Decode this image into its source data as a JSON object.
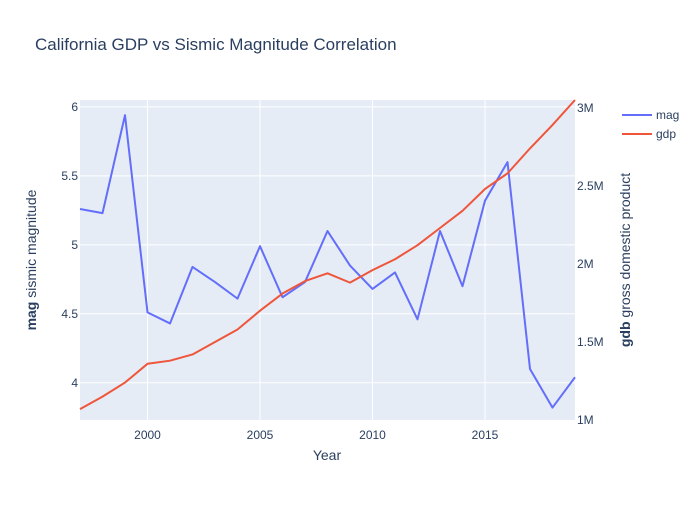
{
  "chart_data": {
    "type": "line",
    "title": "California GDP vs Sismic Magnitude Correlation",
    "xlabel": "Year",
    "ylabel": {
      "bold": "mag",
      "rest": " sismic magnitude"
    },
    "y2label": {
      "bold": "gdb",
      "rest": " gross domestic product"
    },
    "xlim": [
      1997,
      2019
    ],
    "ylim": [
      3.73,
      6.05
    ],
    "y2lim": [
      1.0,
      3.05
    ],
    "x_ticks": [
      2000,
      2005,
      2010,
      2015
    ],
    "y_ticks": [
      {
        "value": 4,
        "label": "4"
      },
      {
        "value": 4.5,
        "label": "4.5"
      },
      {
        "value": 5,
        "label": "5"
      },
      {
        "value": 5.5,
        "label": "5.5"
      },
      {
        "value": 6,
        "label": "6"
      }
    ],
    "y2_ticks": [
      {
        "value": 1.0,
        "label": "1M"
      },
      {
        "value": 1.5,
        "label": "1.5M"
      },
      {
        "value": 2.0,
        "label": "2M"
      },
      {
        "value": 2.5,
        "label": "2.5M"
      },
      {
        "value": 3.0,
        "label": "3M"
      }
    ],
    "grid": true,
    "legend_position": "top-right",
    "x": [
      1997,
      1998,
      1999,
      2000,
      2001,
      2002,
      2003,
      2004,
      2005,
      2006,
      2007,
      2008,
      2009,
      2010,
      2011,
      2012,
      2013,
      2014,
      2015,
      2016,
      2017,
      2018,
      2019
    ],
    "series": [
      {
        "name": "mag",
        "axis": "y",
        "color": "#636efa",
        "values": [
          5.26,
          5.23,
          5.94,
          4.51,
          4.43,
          4.84,
          4.73,
          4.61,
          4.99,
          4.62,
          4.73,
          5.1,
          4.85,
          4.68,
          4.8,
          4.46,
          5.1,
          4.7,
          5.32,
          5.6,
          4.1,
          3.82,
          4.04
        ]
      },
      {
        "name": "gdp",
        "axis": "y2",
        "color": "#ef553b",
        "unit": "M",
        "values": [
          1.07,
          1.15,
          1.24,
          1.36,
          1.38,
          1.42,
          1.5,
          1.58,
          1.7,
          1.81,
          1.89,
          1.94,
          1.88,
          1.96,
          2.03,
          2.12,
          2.23,
          2.34,
          2.48,
          2.58,
          2.74,
          2.89,
          3.05
        ]
      }
    ]
  }
}
